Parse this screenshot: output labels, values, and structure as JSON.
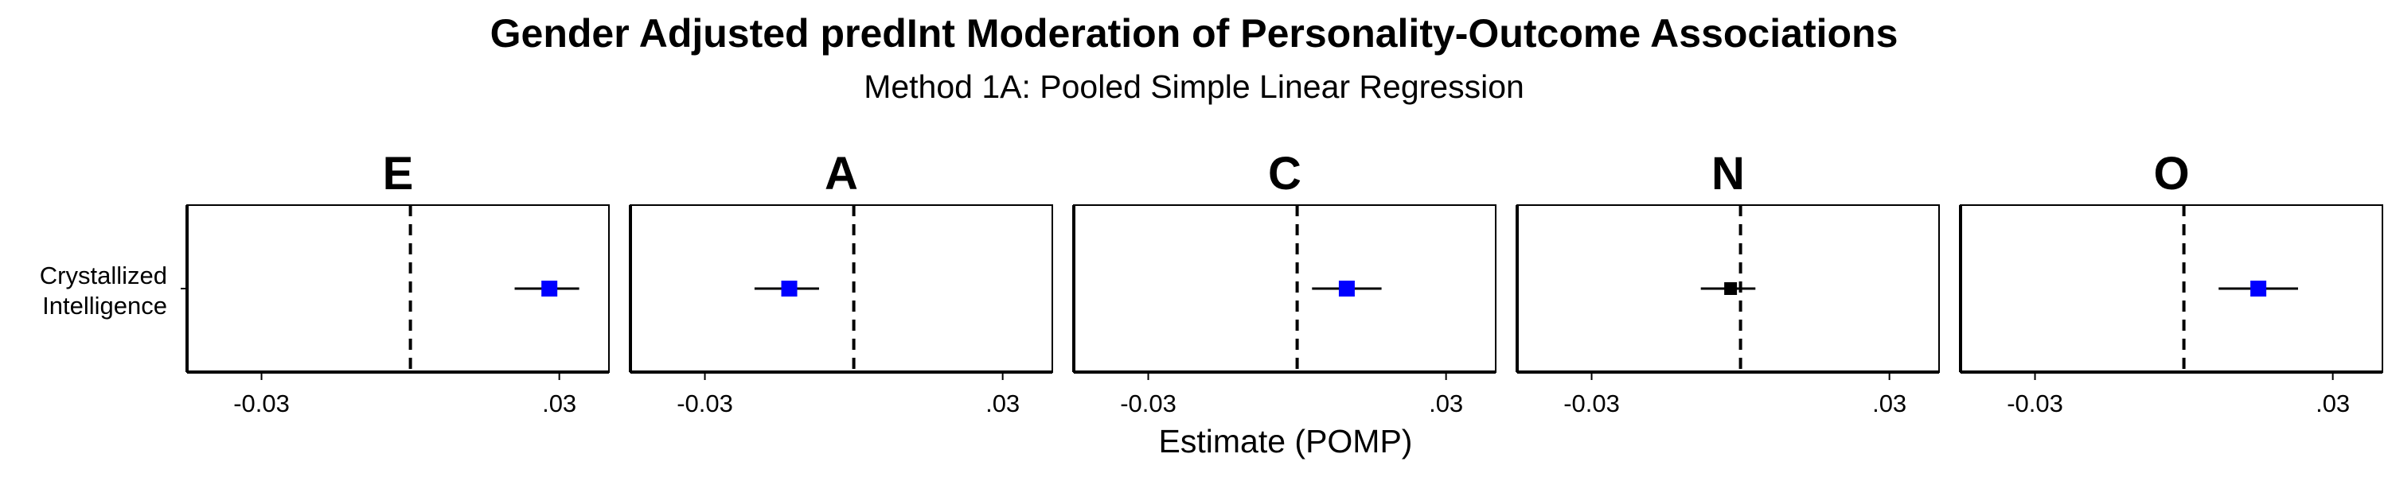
{
  "title": "Gender Adjusted predInt Moderation of Personality-Outcome Associations",
  "subtitle": "Method 1A: Pooled Simple Linear Regression",
  "colors": {
    "significant": "#0000FF",
    "nonsignificant": "#000000"
  },
  "chart_data": {
    "type": "scatter",
    "subtype": "forest-plot-facets",
    "xlabel": "Estimate (POMP)",
    "ylabel_category": "Crystallized\nIntelligence",
    "xlim": [
      -0.045,
      0.04
    ],
    "reference_line": 0,
    "x_ticks": [
      -0.03,
      0.03
    ],
    "x_tick_labels": [
      "-0.03",
      ".03"
    ],
    "facets": [
      {
        "label": "E",
        "estimate": 0.028,
        "ci_low": 0.021,
        "ci_high": 0.034,
        "significant": true
      },
      {
        "label": "A",
        "estimate": -0.013,
        "ci_low": -0.02,
        "ci_high": -0.007,
        "significant": true
      },
      {
        "label": "C",
        "estimate": 0.01,
        "ci_low": 0.003,
        "ci_high": 0.017,
        "significant": true
      },
      {
        "label": "N",
        "estimate": -0.002,
        "ci_low": -0.008,
        "ci_high": 0.003,
        "significant": false
      },
      {
        "label": "O",
        "estimate": 0.015,
        "ci_low": 0.007,
        "ci_high": 0.023,
        "significant": true
      }
    ]
  }
}
